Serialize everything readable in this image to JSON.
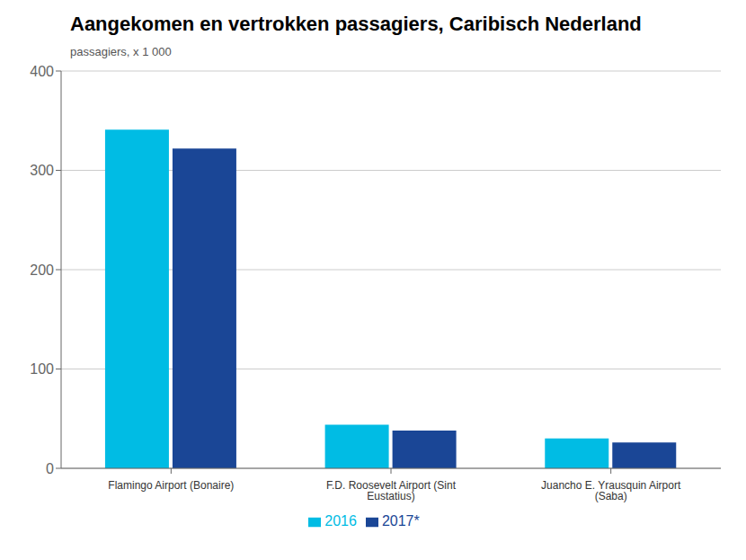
{
  "chart_data": {
    "type": "bar",
    "title": "Aangekomen en vertrokken passagiers, Caribisch Nederland",
    "y_label": "passagiers, x 1 000",
    "categories": [
      "Flamingo Airport (Bonaire)",
      "F.D. Roosevelt Airport (Sint Eustatius)",
      "Juancho E. Yrausquin Airport (Saba)"
    ],
    "series": [
      {
        "name": "2016",
        "color": "#00bce4",
        "values": [
          341,
          44,
          30
        ]
      },
      {
        "name": "2017*",
        "color": "#1a4696",
        "values": [
          322,
          38,
          26
        ]
      }
    ],
    "ylim": [
      0,
      400
    ],
    "yticks": [
      0,
      100,
      200,
      300,
      400
    ],
    "grid": true,
    "legend": "bottom"
  }
}
